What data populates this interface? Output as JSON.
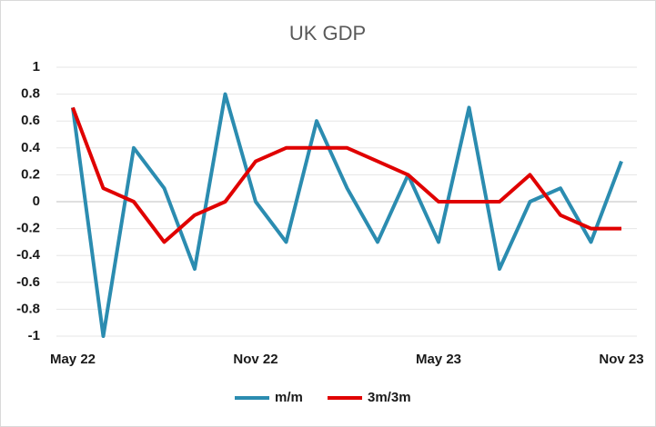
{
  "chart_data": {
    "type": "line",
    "title": "UK GDP",
    "categories": [
      "May 22",
      null,
      null,
      null,
      null,
      null,
      "Nov 22",
      null,
      null,
      null,
      null,
      null,
      "May 23",
      null,
      null,
      null,
      null,
      null,
      "Nov 23"
    ],
    "series": [
      {
        "name": "m/m",
        "color": "#2b8cb0",
        "values": [
          0.7,
          -1.0,
          0.4,
          0.1,
          -0.5,
          0.8,
          0.0,
          -0.3,
          0.6,
          0.1,
          -0.3,
          0.2,
          -0.3,
          0.7,
          -0.5,
          0.0,
          0.1,
          -0.3,
          0.3
        ]
      },
      {
        "name": "3m/3m",
        "color": "#e00000",
        "values": [
          0.7,
          0.1,
          0.0,
          -0.3,
          -0.1,
          0.0,
          0.3,
          0.4,
          0.4,
          0.4,
          0.3,
          0.2,
          0.0,
          0.0,
          0.0,
          0.2,
          -0.1,
          -0.2,
          -0.2
        ]
      }
    ],
    "ylim": [
      -1,
      1
    ],
    "yticks": [
      -1,
      -0.8,
      -0.6,
      -0.4,
      -0.2,
      0,
      0.2,
      0.4,
      0.6,
      0.8,
      1
    ],
    "grid": true,
    "legend": "bottom"
  }
}
